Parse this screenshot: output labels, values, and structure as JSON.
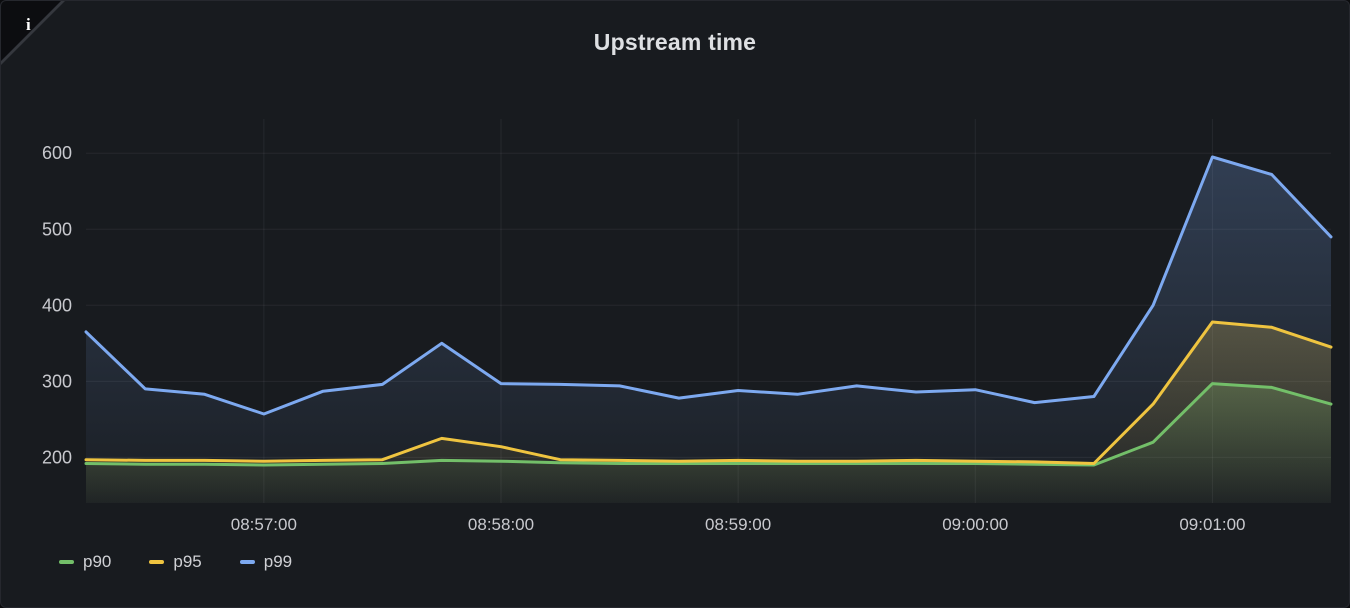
{
  "panel": {
    "title": "Upstream time",
    "info_indicator": "i"
  },
  "colors": {
    "background": "#181B1F",
    "page_background": "#0B0C0E",
    "grid": "rgba(204,204,220,0.08)",
    "tick_text": "#C8C9CE",
    "title_text": "#DEE0E3",
    "legend_text": "#D0D1D5"
  },
  "chart_data": {
    "type": "line",
    "title": "Upstream time",
    "x": [
      "08:56:15",
      "08:56:30",
      "08:56:45",
      "08:57:00",
      "08:57:15",
      "08:57:30",
      "08:57:45",
      "08:58:00",
      "08:58:15",
      "08:58:30",
      "08:58:45",
      "08:59:00",
      "08:59:15",
      "08:59:30",
      "08:59:45",
      "09:00:00",
      "09:00:15",
      "09:00:30",
      "09:00:45",
      "09:01:00",
      "09:01:15",
      "09:01:30"
    ],
    "x_ticks": [
      "08:57:00",
      "08:58:00",
      "08:59:00",
      "09:00:00",
      "09:01:00"
    ],
    "y_ticks": [
      200,
      300,
      400,
      500,
      600
    ],
    "ylim": [
      140,
      645
    ],
    "grid": true,
    "legend_position": "bottom-left",
    "fill": "opacity-gradient",
    "series": [
      {
        "name": "p90",
        "color": "#73BF69",
        "values": [
          192,
          191,
          191,
          190,
          191,
          192,
          196,
          195,
          193,
          192,
          192,
          192,
          192,
          192,
          192,
          192,
          191,
          190,
          220,
          297,
          292,
          270
        ]
      },
      {
        "name": "p95",
        "color": "#EFC440",
        "values": [
          197,
          196,
          196,
          195,
          196,
          197,
          225,
          214,
          197,
          196,
          195,
          196,
          195,
          195,
          196,
          195,
          194,
          192,
          270,
          378,
          371,
          345
        ]
      },
      {
        "name": "p99",
        "color": "#7DA9F0",
        "values": [
          365,
          290,
          283,
          257,
          287,
          296,
          350,
          297,
          296,
          294,
          278,
          288,
          283,
          294,
          286,
          289,
          272,
          280,
          400,
          595,
          572,
          490
        ]
      }
    ]
  }
}
